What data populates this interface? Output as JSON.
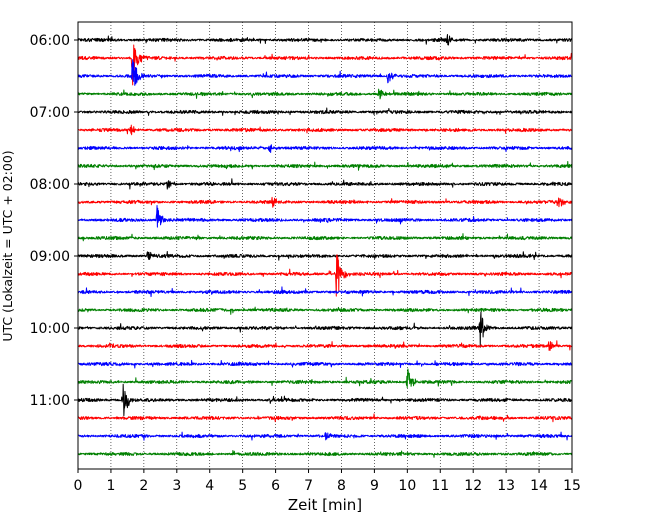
{
  "chart_data": {
    "type": "line",
    "subtype": "helicorder-seismogram",
    "title": "",
    "xlabel": "Zeit  [min]",
    "ylabel": "UTC (Lokalzeit = UTC + 02:00)",
    "xlim": [
      0,
      15
    ],
    "x_ticks": [
      0,
      1,
      2,
      3,
      4,
      5,
      6,
      7,
      8,
      9,
      10,
      11,
      12,
      13,
      14,
      15
    ],
    "y_ticks": [
      "06:00",
      "07:00",
      "08:00",
      "09:00",
      "10:00",
      "11:00"
    ],
    "minutes_per_trace": 15,
    "grid": "vertical dotted at every minute",
    "trace_colors": [
      "#000000",
      "#ff0000",
      "#0000ff",
      "#008000"
    ],
    "traces": [
      {
        "start": "06:00",
        "color": "#000000",
        "events": [
          {
            "minute": 11.2,
            "amp": 0.25
          }
        ]
      },
      {
        "start": "06:15",
        "color": "#ff0000",
        "events": [
          {
            "minute": 1.65,
            "amp": 1.0
          }
        ]
      },
      {
        "start": "06:30",
        "color": "#0000ff",
        "events": [
          {
            "minute": 1.65,
            "amp": 0.7
          },
          {
            "minute": 9.4,
            "amp": 0.3
          }
        ]
      },
      {
        "start": "06:45",
        "color": "#008000",
        "events": [
          {
            "minute": 9.1,
            "amp": 0.3
          }
        ]
      },
      {
        "start": "07:00",
        "color": "#000000",
        "events": []
      },
      {
        "start": "07:15",
        "color": "#ff0000",
        "events": [
          {
            "minute": 1.6,
            "amp": 0.2
          }
        ]
      },
      {
        "start": "07:30",
        "color": "#0000ff",
        "events": [
          {
            "minute": 5.8,
            "amp": 0.2
          }
        ]
      },
      {
        "start": "07:45",
        "color": "#008000",
        "events": []
      },
      {
        "start": "08:00",
        "color": "#000000",
        "events": [
          {
            "minute": 2.7,
            "amp": 0.2
          }
        ]
      },
      {
        "start": "08:15",
        "color": "#ff0000",
        "events": [
          {
            "minute": 5.9,
            "amp": 0.2
          },
          {
            "minute": 14.6,
            "amp": 0.2
          }
        ]
      },
      {
        "start": "08:30",
        "color": "#0000ff",
        "events": [
          {
            "minute": 2.4,
            "amp": 0.55
          }
        ]
      },
      {
        "start": "08:45",
        "color": "#008000",
        "events": []
      },
      {
        "start": "09:00",
        "color": "#000000",
        "events": [
          {
            "minute": 2.1,
            "amp": 0.25
          }
        ]
      },
      {
        "start": "09:15",
        "color": "#ff0000",
        "events": [
          {
            "minute": 7.85,
            "amp": 1.1
          }
        ]
      },
      {
        "start": "09:30",
        "color": "#0000ff",
        "events": []
      },
      {
        "start": "09:45",
        "color": "#008000",
        "events": []
      },
      {
        "start": "10:00",
        "color": "#000000",
        "events": [
          {
            "minute": 12.2,
            "amp": 0.75
          }
        ]
      },
      {
        "start": "10:15",
        "color": "#ff0000",
        "events": [
          {
            "minute": 14.3,
            "amp": 0.2
          }
        ]
      },
      {
        "start": "10:30",
        "color": "#0000ff",
        "events": []
      },
      {
        "start": "10:45",
        "color": "#008000",
        "events": [
          {
            "minute": 10.0,
            "amp": 0.55
          }
        ]
      },
      {
        "start": "11:00",
        "color": "#000000",
        "events": [
          {
            "minute": 1.35,
            "amp": 0.85
          }
        ]
      },
      {
        "start": "11:15",
        "color": "#ff0000",
        "events": []
      },
      {
        "start": "11:30",
        "color": "#0000ff",
        "events": [
          {
            "minute": 7.5,
            "amp": 0.2
          }
        ]
      },
      {
        "start": "11:45",
        "color": "#008000",
        "events": []
      }
    ]
  }
}
